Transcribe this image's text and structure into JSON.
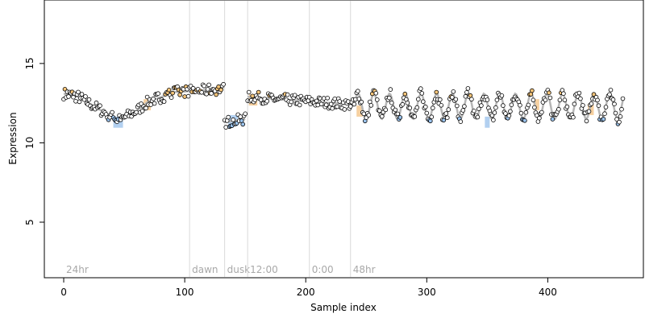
{
  "chart_data": {
    "type": "scatter",
    "title": "",
    "xlabel": "Sample index",
    "ylabel": "Expression",
    "xlim": [
      -16,
      479
    ],
    "ylim": [
      1.5,
      19.0
    ],
    "xticks": [
      0,
      100,
      200,
      300,
      400
    ],
    "yticks": [
      5,
      10,
      15
    ],
    "grid": false,
    "legend": "none",
    "colors": {
      "point_stroke": "#000000",
      "point_fill_default": "#ffffff",
      "point_fill_high": "#f5c57a",
      "point_fill_low": "#9cc4ee",
      "trend_line": "#b5b5b5",
      "band_high": "#f0b060",
      "band_low": "#7fb0e6",
      "annotation_line": "#d9d9d9",
      "annotation_text": "#a8a8a8"
    },
    "annotations": [
      {
        "label": "24hr",
        "x": 0
      },
      {
        "label": "dawn",
        "x": 104
      },
      {
        "label": "dusk",
        "x": 133
      },
      {
        "label": "12:00",
        "x": 152
      },
      {
        "label": "0:00",
        "x": 203
      },
      {
        "label": "48hr",
        "x": 237
      }
    ],
    "series": [
      {
        "segments": [
          {
            "x0": 0,
            "x1": 12,
            "y0": 13.1,
            "y1": 12.9
          },
          {
            "x0": 12,
            "x1": 45,
            "y0": 12.9,
            "y1": 11.4,
            "amp": 0.05
          },
          {
            "x0": 45,
            "x1": 60,
            "y0": 11.4,
            "y1": 12.0
          },
          {
            "x0": 60,
            "x1": 70,
            "y0": 12.0,
            "y1": 12.6
          },
          {
            "x0": 70,
            "x1": 92,
            "y0": 12.6,
            "y1": 13.2
          },
          {
            "x0": 92,
            "x1": 132,
            "y0": 13.2,
            "y1": 13.4
          },
          {
            "x0": 133,
            "x1": 150,
            "y0": 11.3,
            "y1": 11.5
          },
          {
            "x0": 152,
            "x1": 240,
            "y0": 12.9,
            "y1": 12.4
          },
          {
            "x0": 240,
            "x1": 462,
            "y0": 12.3,
            "y1": 12.3,
            "amp": 0.8,
            "period": 13
          }
        ],
        "noise": 0.35,
        "high_threshold": 12.9,
        "low_threshold": 11.6,
        "bands": [
          {
            "x0": 41,
            "x1": 49,
            "y": 11.3,
            "kind": "low"
          },
          {
            "x0": 66,
            "x1": 72,
            "y": 12.4,
            "kind": "high"
          },
          {
            "x0": 136,
            "x1": 144,
            "y": 11.4,
            "kind": "low"
          },
          {
            "x0": 153,
            "x1": 160,
            "y": 12.7,
            "kind": "high"
          },
          {
            "x0": 242,
            "x1": 247,
            "y": 12.0,
            "kind": "high"
          },
          {
            "x0": 348,
            "x1": 352,
            "y": 11.3,
            "kind": "low"
          },
          {
            "x0": 388,
            "x1": 393,
            "y": 12.4,
            "kind": "high"
          },
          {
            "x0": 433,
            "x1": 438,
            "y": 12.1,
            "kind": "high"
          }
        ]
      }
    ]
  }
}
